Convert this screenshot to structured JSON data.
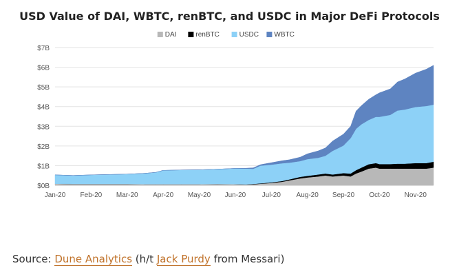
{
  "chart_data": {
    "type": "area",
    "stacked": true,
    "title": "USD Value of DAI, WBTC, renBTC, and USDC in Major DeFi Protocols",
    "xlabel": "",
    "ylabel": "",
    "ylim": [
      0,
      7
    ],
    "y_ticks": [
      "$0B",
      "$1B",
      "$2B",
      "$3B",
      "$4B",
      "$5B",
      "$6B",
      "$7B"
    ],
    "x_ticks": [
      "Jan-20",
      "Feb-20",
      "Mar-20",
      "Apr-20",
      "May-20",
      "Jun-20",
      "Jul-20",
      "Aug-20",
      "Sep-20",
      "Oct-20",
      "Nov-20"
    ],
    "grid": "horizontal",
    "legend_position": "top-center",
    "x_months": [
      0,
      0.5,
      1,
      1.5,
      2,
      2.5,
      2.8,
      3,
      3.5,
      4,
      4.5,
      5,
      5.3,
      5.5,
      5.7,
      6,
      6.3,
      6.5,
      6.8,
      7,
      7.3,
      7.5,
      7.7,
      8,
      8.2,
      8.35,
      8.5,
      8.7,
      8.9,
      9,
      9.3,
      9.5,
      9.7,
      10,
      10.3,
      10.5
    ],
    "series": [
      {
        "name": "DAI",
        "color": "#b8b8b8",
        "values": [
          0.08,
          0.07,
          0.07,
          0.07,
          0.07,
          0.06,
          0.06,
          0.06,
          0.06,
          0.06,
          0.07,
          0.06,
          0.05,
          0.05,
          0.08,
          0.12,
          0.18,
          0.25,
          0.35,
          0.4,
          0.45,
          0.5,
          0.45,
          0.5,
          0.45,
          0.6,
          0.7,
          0.85,
          0.9,
          0.85,
          0.85,
          0.85,
          0.85,
          0.85,
          0.85,
          0.9
        ]
      },
      {
        "name": "renBTC",
        "color": "#000000",
        "values": [
          0,
          0,
          0,
          0,
          0,
          0,
          0,
          0,
          0,
          0,
          0,
          0,
          0,
          0.02,
          0.02,
          0.03,
          0.04,
          0.05,
          0.08,
          0.08,
          0.1,
          0.1,
          0.1,
          0.12,
          0.15,
          0.17,
          0.2,
          0.22,
          0.23,
          0.23,
          0.23,
          0.25,
          0.25,
          0.28,
          0.28,
          0.3
        ]
      },
      {
        "name": "USDC",
        "color": "#8dd1f7",
        "values": [
          0.45,
          0.43,
          0.46,
          0.48,
          0.5,
          0.55,
          0.6,
          0.7,
          0.72,
          0.73,
          0.75,
          0.8,
          0.8,
          0.77,
          0.9,
          0.9,
          0.9,
          0.85,
          0.8,
          0.85,
          0.85,
          0.9,
          1.2,
          1.4,
          1.8,
          2.1,
          2.2,
          2.25,
          2.35,
          2.4,
          2.5,
          2.7,
          2.75,
          2.85,
          2.9,
          2.9
        ]
      },
      {
        "name": "WBTC",
        "color": "#5e84c1",
        "values": [
          0,
          0,
          0,
          0,
          0,
          0,
          0,
          0,
          0,
          0,
          0,
          0,
          0.02,
          0.05,
          0.05,
          0.1,
          0.13,
          0.15,
          0.2,
          0.27,
          0.35,
          0.4,
          0.5,
          0.58,
          0.6,
          0.9,
          0.95,
          1.05,
          1.12,
          1.22,
          1.32,
          1.45,
          1.55,
          1.72,
          1.87,
          2.0
        ]
      }
    ]
  },
  "source": {
    "prefix": "Source: ",
    "link1": "Dune Analytics",
    "middle": " (h/t ",
    "link2": "Jack Purdy",
    "suffix": " from Messari)"
  }
}
